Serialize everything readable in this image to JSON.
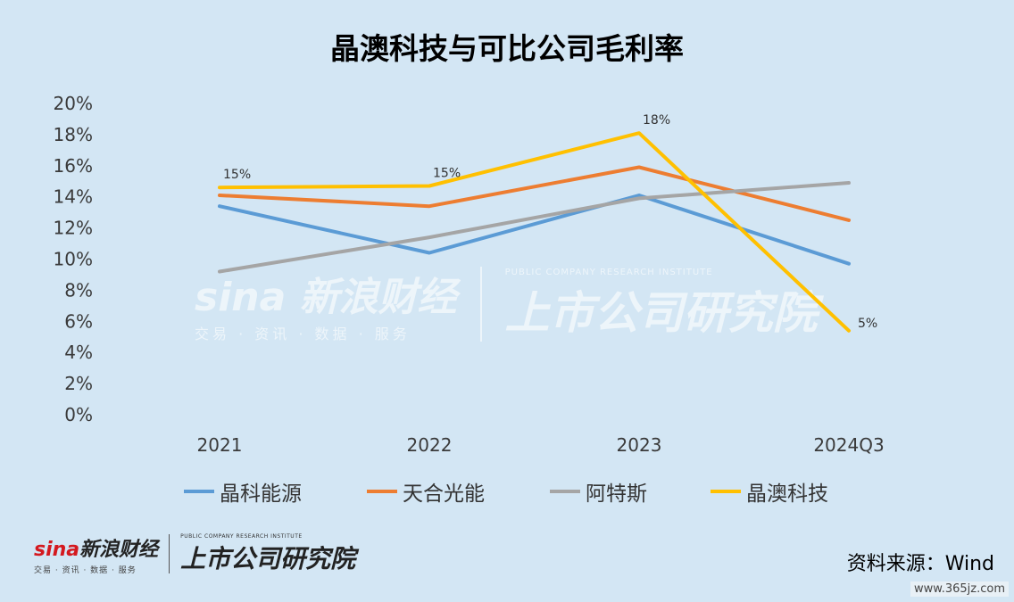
{
  "chart_data": {
    "type": "line",
    "title": "晶澳科技与可比公司毛利率",
    "categories": [
      "2021",
      "2022",
      "2023",
      "2024Q3"
    ],
    "series": [
      {
        "name": "晶科能源",
        "color": "#5b9bd5",
        "values": [
          13.4,
          10.4,
          14.1,
          9.7
        ]
      },
      {
        "name": "天合光能",
        "color": "#ed7d31",
        "values": [
          14.1,
          13.4,
          15.9,
          12.5
        ]
      },
      {
        "name": "阿特斯",
        "color": "#a5a5a5",
        "values": [
          9.2,
          11.4,
          13.9,
          14.9
        ]
      },
      {
        "name": "晶澳科技",
        "color": "#ffc000",
        "values": [
          14.6,
          14.7,
          18.1,
          5.4
        ],
        "data_labels": [
          "15%",
          "15%",
          "18%",
          "5%"
        ]
      }
    ],
    "ylim": [
      0,
      20
    ],
    "yticks": [
      "0%",
      "2%",
      "4%",
      "6%",
      "8%",
      "10%",
      "12%",
      "14%",
      "16%",
      "18%",
      "20%"
    ],
    "grid": false,
    "legend_position": "bottom"
  },
  "footer": {
    "source": "资料来源：Wind",
    "site": "www.365jz.com",
    "sina_brand": "新浪财经",
    "sina_sub": "交易 · 资讯 · 数据 · 服务",
    "institute": "上市公司研究院",
    "institute_en": "PUBLIC COMPANY RESEARCH INSTITUTE"
  }
}
